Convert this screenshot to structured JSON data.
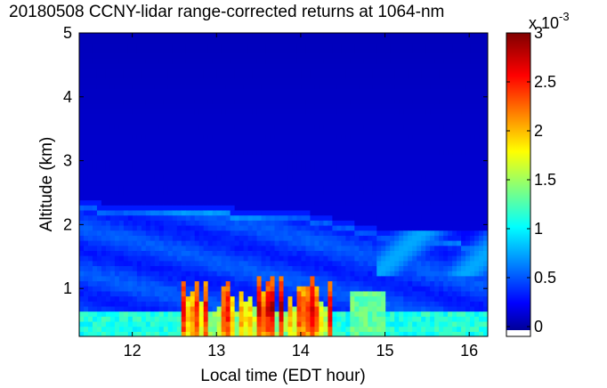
{
  "chart_data": {
    "type": "heatmap",
    "title": "20180508 CCNY-lidar range-corrected returns at 1064-nm",
    "xlabel": "Local time (EDT hour)",
    "ylabel": "Altitude (km)",
    "xlim": [
      11.37,
      16.22
    ],
    "ylim": [
      0.25,
      5
    ],
    "x_ticks": [
      "12",
      "13",
      "14",
      "15",
      "16"
    ],
    "y_ticks": [
      "1",
      "2",
      "3",
      "4",
      "5"
    ],
    "colorbar": {
      "range": [
        -0.1,
        3
      ],
      "ticks": [
        "0",
        "0.5",
        "1",
        "1.5",
        "2",
        "2.5",
        "3"
      ],
      "multiplier_base": "x 10",
      "multiplier_exp": "-3",
      "colormap": "jet"
    },
    "features": {
      "near_surface_signal": "0.25-0.6 km, values ~1.0-1.3 (x 10^-3), across all times",
      "convective_plumes": "12.6-14.3 h, up to ~1.2 km, peak ~2.3-2.8 (x 10^-3)",
      "aerosol_layer_top": "~2.3 km before 14 h, descending to ~1.5-1.8 km after 15 h",
      "free_troposphere": "above ~2.5 km, values ~0-0.2 (x 10^-3)"
    }
  }
}
